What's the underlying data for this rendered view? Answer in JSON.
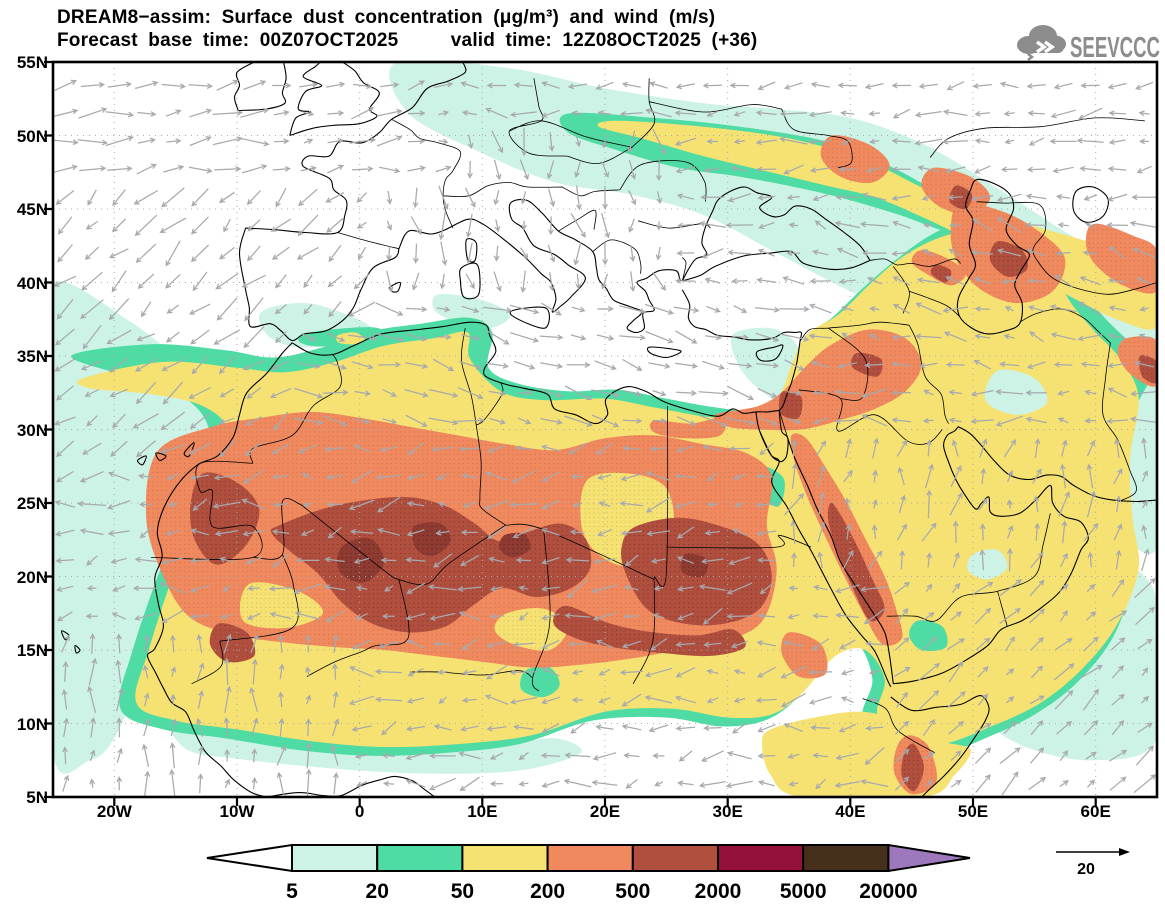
{
  "header": {
    "title_line1": "DREAM8−assim: Surface dust concentration (μg/m³) and wind (m/s)",
    "title_line2": "Forecast base time: 00Z07OCT2025     valid time: 12Z08OCT2025 (+36)",
    "logo_text": "SEEVCCC"
  },
  "axes": {
    "lat_labels": [
      "55N",
      "50N",
      "45N",
      "40N",
      "35N",
      "30N",
      "25N",
      "20N",
      "15N",
      "10N",
      "5N"
    ],
    "lon_labels": [
      "20W",
      "10W",
      "0",
      "10E",
      "20E",
      "30E",
      "40E",
      "50E",
      "60E"
    ]
  },
  "colorbar": {
    "labels": [
      "5",
      "20",
      "50",
      "200",
      "500",
      "2000",
      "5000",
      "20000"
    ]
  },
  "windref": {
    "label": "20"
  },
  "chart_data": {
    "type": "filled-contour-map",
    "title": "DREAM8−assim: Surface dust concentration (μg/m³) and wind (m/s)",
    "model": "DREAM8-assim",
    "variable": "Surface dust concentration",
    "units": "μg/m³",
    "wind_variable": "wind",
    "wind_units": "m/s",
    "forecast_base_time": "00Z07OCT2025",
    "valid_time": "12Z08OCT2025",
    "forecast_offset_hours": 36,
    "levels": [
      5,
      20,
      50,
      200,
      500,
      2000,
      5000,
      20000
    ],
    "palette": {
      "below_min": "#ffffff",
      "bins": [
        "#cdf2e6",
        "#4edba4",
        "#f6e273",
        "#f0895e",
        "#b14f3f",
        "#92103a",
        "#46301c"
      ],
      "above_max": "#9e78bc"
    },
    "colorbar_labels": [
      "5",
      "20",
      "50",
      "200",
      "500",
      "2000",
      "5000",
      "20000"
    ],
    "wind_reference_ms": 20,
    "lat_axis": {
      "min_label": "5N",
      "max_label": "55N",
      "tick_interval_deg": 5
    },
    "lon_axis": {
      "min_label": "20W",
      "max_label": "60E",
      "tick_interval_deg": 10
    },
    "grid": "dotted graticule every 5 deg latitude / 10 deg longitude",
    "summary": "Broad dust plume (50–200 μg/m³, yellow) over the Sahara, Sahel, Arabia and Middle East with 200–500 μg/m³ (orange) and 500–2000 μg/m³ (dark red) cores over Mauritania, Mali/Algeria/Niger, northern Sudan/southern Egypt, the Levant, the Hejaz coast and east of the Caspian; 5–50 μg/m³ fringes (cyan/green) over the adjacent Atlantic, Gulf of Guinea, Arabian Sea and a band from Ukraine across southern Russia to Central Asia; clean air (white) over most of Europe, the North Atlantic and the eastern Mediterranean; gray wind vectors overlaid, reference 20 m/s."
  }
}
